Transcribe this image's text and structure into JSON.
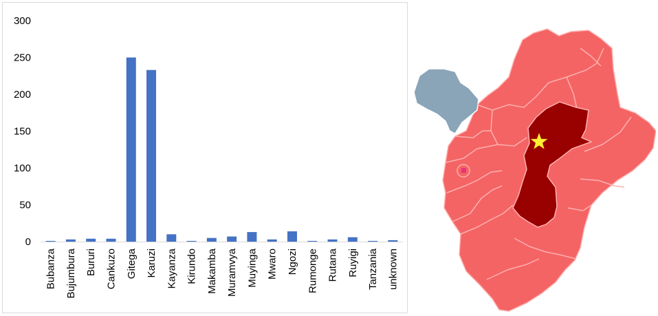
{
  "chart_data": {
    "type": "bar",
    "categories": [
      "Bubanza",
      "Bujumbura",
      "Bururi",
      "Cankuzo",
      "Gitega",
      "Karuzi",
      "Kayanza",
      "Kirundo",
      "Makamba",
      "Muramvya",
      "Muyinga",
      "Mwaro",
      "Ngozi",
      "Rumonge",
      "Rutana",
      "Ruyigi",
      "Tanzania",
      "unknown"
    ],
    "values": [
      1,
      3,
      4,
      4,
      250,
      233,
      10,
      1,
      5,
      7,
      13,
      3,
      14,
      1,
      3,
      6,
      1,
      2
    ],
    "title": "",
    "xlabel": "",
    "ylabel": "",
    "ylim": [
      0,
      300
    ],
    "yticks": [
      0,
      50,
      100,
      150,
      200,
      250,
      300
    ],
    "grid": false,
    "bar_color": "#4472c4"
  },
  "map": {
    "colors": {
      "province_fill": "#f46464",
      "highlight_fill": "#990000",
      "bujumbura_fill": "#8aa4b8",
      "border": "#ffb0b0",
      "star": "#ffee33",
      "marker": "#e8337a"
    },
    "icons": [
      "star-icon",
      "square-marker-icon"
    ]
  }
}
